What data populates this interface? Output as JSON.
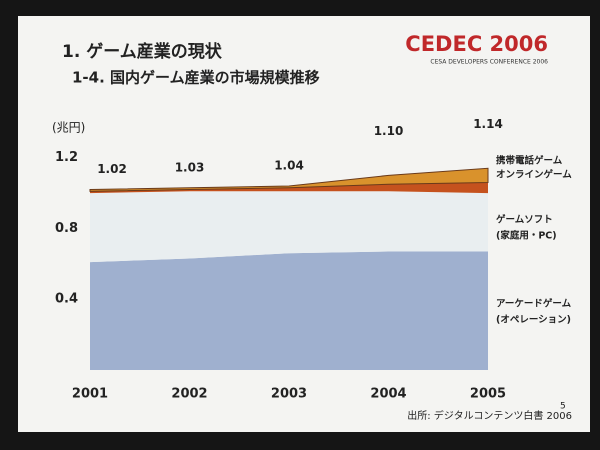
{
  "logo": {
    "title": "CEDEC 2006",
    "subtitle": "CESA DEVELOPERS CONFERENCE 2006"
  },
  "page_number": "5",
  "source": "出所: デジタルコンテンツ白書 2006",
  "chart_data": {
    "type": "stacked_area",
    "title": "1. ゲーム産業の現状",
    "subtitle": "1-4. 国内ゲーム産業の市場規模推移",
    "y_label": "(兆円)",
    "categories": [
      "2001",
      "2002",
      "2003",
      "2004",
      "2005"
    ],
    "series": [
      {
        "name": "アーケードゲーム",
        "subname": "(オペレーション)",
        "color": "#9fb0cf",
        "values": [
          0.61,
          0.63,
          0.66,
          0.67,
          0.67
        ]
      },
      {
        "name": "ゲームソフト",
        "subname": "(家庭用・PC)",
        "color": "#e9eef0",
        "values": [
          0.39,
          0.38,
          0.35,
          0.34,
          0.33
        ]
      },
      {
        "name": "オンラインゲーム",
        "color": "#c5521e",
        "values": [
          0.01,
          0.01,
          0.02,
          0.04,
          0.06
        ]
      },
      {
        "name": "携帯電話ゲーム",
        "color": "#d9922c",
        "values": [
          0.01,
          0.01,
          0.01,
          0.05,
          0.08
        ]
      }
    ],
    "totals": {
      "values": [
        1.02,
        1.03,
        1.04,
        1.1,
        1.14
      ],
      "value_labels": [
        "1.02",
        "1.03",
        "1.04",
        "1.10",
        "1.14"
      ]
    },
    "ylim": [
      0,
      1.3
    ],
    "yticks": [
      0.4,
      0.8,
      1.2
    ]
  }
}
